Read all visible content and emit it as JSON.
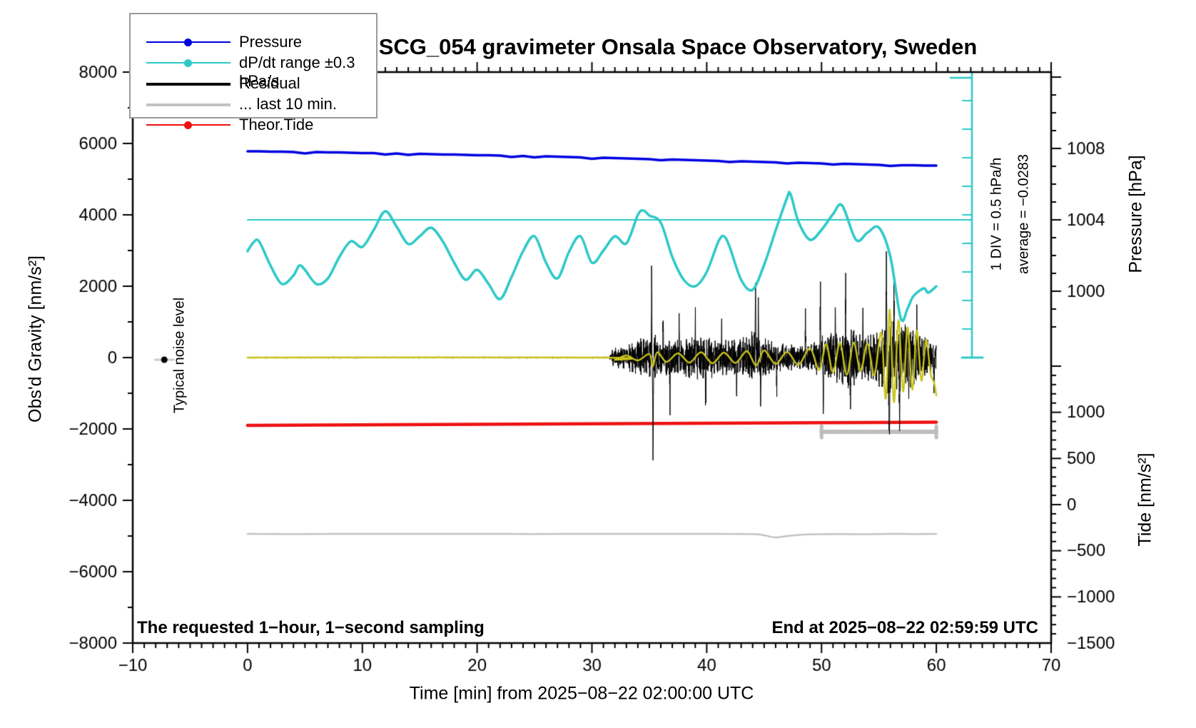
{
  "chart_data": {
    "type": "line",
    "title": "SCG_054 gravimeter Onsala Space Observatory, Sweden",
    "xlabel": "Time [min] from 2025−08−22 02:00:00 UTC",
    "x_axis": {
      "range": [
        -10,
        70
      ],
      "major_ticks": [
        -10,
        0,
        10,
        20,
        30,
        40,
        50,
        60,
        70
      ],
      "minor_step": 1
    },
    "gravity_axis": {
      "label": "Obs'd Gravity [nm/s²]",
      "range": [
        -8000,
        8000
      ],
      "major_ticks": [
        8000,
        6000,
        4000,
        2000,
        0,
        -2000,
        -4000,
        -6000,
        -8000
      ],
      "minor_step": 1000
    },
    "pressure_axis": {
      "label": "Pressure [hPa]",
      "major_ticks": [
        1008,
        1004,
        1000
      ],
      "minor_step": 1
    },
    "tide_axis": {
      "label": "Tide [nm/s²]",
      "major_ticks": [
        1000,
        500,
        0,
        -500,
        -1000,
        -1500
      ],
      "minor_step": 100
    },
    "legend": {
      "items": [
        {
          "label": "Pressure",
          "color": "#0000e0",
          "marker": "dot",
          "lw": 2.5
        },
        {
          "label": "dP/dt range ±0.3 hPa/s",
          "color": "#2cc8c8",
          "marker": "dot",
          "lw": 2.5
        },
        {
          "label": "Residual",
          "color": "#000000",
          "marker": "none",
          "lw": 4
        },
        {
          "label": "... last 10 min.",
          "color": "#c3c3c3",
          "marker": "none",
          "lw": 4
        },
        {
          "label": "Theor.Tide",
          "color": "#ee1111",
          "marker": "dot",
          "lw": 2.5
        }
      ]
    },
    "annotations": {
      "noise_level": "Typical noise level",
      "div_scale": "1 DIV = 0.5 hPa/h",
      "average": "average = −0.0283",
      "sampling": "The requested 1−hour, 1−second sampling",
      "end_time": "End at 2025−08−22 02:59:59 UTC"
    },
    "series": {
      "pressure_hpa_per_min": [
        1007.84,
        1007.84,
        1007.82,
        1007.82,
        1007.8,
        1007.72,
        1007.8,
        1007.78,
        1007.78,
        1007.76,
        1007.74,
        1007.74,
        1007.66,
        1007.72,
        1007.64,
        1007.7,
        1007.68,
        1007.66,
        1007.66,
        1007.64,
        1007.62,
        1007.62,
        1007.6,
        1007.52,
        1007.58,
        1007.5,
        1007.56,
        1007.54,
        1007.52,
        1007.5,
        1007.42,
        1007.48,
        1007.46,
        1007.44,
        1007.42,
        1007.4,
        1007.34,
        1007.38,
        1007.36,
        1007.34,
        1007.32,
        1007.3,
        1007.24,
        1007.28,
        1007.26,
        1007.24,
        1007.22,
        1007.16,
        1007.2,
        1007.18,
        1007.16,
        1007.1,
        1007.14,
        1007.12,
        1007.1,
        1007.08,
        1007.02,
        1007.06,
        1007.06,
        1007.04,
        1007.04
      ],
      "dpdt_gravity": [
        [
          0,
          2980
        ],
        [
          0.5,
          3220
        ],
        [
          1,
          3260
        ],
        [
          2,
          2580
        ],
        [
          3,
          2060
        ],
        [
          4,
          2300
        ],
        [
          4.5,
          2580
        ],
        [
          5,
          2460
        ],
        [
          6,
          2060
        ],
        [
          7,
          2220
        ],
        [
          8,
          2820
        ],
        [
          9,
          3260
        ],
        [
          10,
          3100
        ],
        [
          11,
          3580
        ],
        [
          12,
          4100
        ],
        [
          13,
          3660
        ],
        [
          14,
          3180
        ],
        [
          15,
          3400
        ],
        [
          16,
          3640
        ],
        [
          17,
          3260
        ],
        [
          18,
          2660
        ],
        [
          19,
          2180
        ],
        [
          20,
          2460
        ],
        [
          21,
          2060
        ],
        [
          22,
          1640
        ],
        [
          23,
          2260
        ],
        [
          24,
          2980
        ],
        [
          25,
          3400
        ],
        [
          26,
          2660
        ],
        [
          27,
          2220
        ],
        [
          28,
          2960
        ],
        [
          29,
          3400
        ],
        [
          30,
          2660
        ],
        [
          31,
          3000
        ],
        [
          32,
          3400
        ],
        [
          33,
          3200
        ],
        [
          34,
          4000
        ],
        [
          34.5,
          4120
        ],
        [
          35,
          3980
        ],
        [
          36,
          3780
        ],
        [
          37,
          2820
        ],
        [
          38,
          2180
        ],
        [
          39,
          2000
        ],
        [
          40,
          2400
        ],
        [
          41,
          3240
        ],
        [
          41.5,
          3400
        ],
        [
          42,
          3100
        ],
        [
          43,
          2180
        ],
        [
          44,
          1900
        ],
        [
          45,
          2600
        ],
        [
          46,
          3560
        ],
        [
          47,
          4480
        ],
        [
          47.3,
          4580
        ],
        [
          48,
          3800
        ],
        [
          49,
          3300
        ],
        [
          50,
          3580
        ],
        [
          51,
          4020
        ],
        [
          51.8,
          4260
        ],
        [
          53,
          3300
        ],
        [
          54,
          3500
        ],
        [
          55,
          3640
        ],
        [
          56,
          2820
        ],
        [
          56.9,
          1100
        ],
        [
          57.5,
          1380
        ],
        [
          58,
          1720
        ],
        [
          58.9,
          1940
        ],
        [
          59.3,
          1820
        ],
        [
          60,
          2000
        ]
      ],
      "dpdt_zero_line_gravity": 3860,
      "residual_envelope": [
        [
          0,
          25
        ],
        [
          31.5,
          25
        ],
        [
          31.8,
          260
        ],
        [
          33,
          380
        ],
        [
          34,
          520
        ],
        [
          35,
          700
        ],
        [
          35.6,
          650
        ],
        [
          36.5,
          520
        ],
        [
          38,
          560
        ],
        [
          39.5,
          700
        ],
        [
          41,
          520
        ],
        [
          43,
          560
        ],
        [
          44,
          760
        ],
        [
          45,
          600
        ],
        [
          46,
          420
        ],
        [
          47.5,
          380
        ],
        [
          49,
          360
        ],
        [
          49.8,
          600
        ],
        [
          50.5,
          700
        ],
        [
          51.5,
          800
        ],
        [
          52.5,
          880
        ],
        [
          53.5,
          700
        ],
        [
          54.5,
          680
        ],
        [
          55.2,
          900
        ],
        [
          55.9,
          1150
        ],
        [
          56.6,
          1000
        ],
        [
          57.4,
          950
        ],
        [
          58.2,
          800
        ],
        [
          59,
          600
        ],
        [
          59.6,
          450
        ],
        [
          60,
          400
        ]
      ],
      "residual_spikes": [
        [
          35.2,
          2420,
          0.05
        ],
        [
          35.32,
          -3080,
          0.06
        ],
        [
          36.2,
          1250,
          0.04
        ],
        [
          36.8,
          -1350,
          0.04
        ],
        [
          37.6,
          1150,
          0.04
        ],
        [
          39.0,
          1300,
          0.04
        ],
        [
          39.9,
          -1250,
          0.05
        ],
        [
          41.3,
          1050,
          0.04
        ],
        [
          42.6,
          -1000,
          0.04
        ],
        [
          44.25,
          1900,
          0.05
        ],
        [
          44.5,
          1750,
          0.04
        ],
        [
          44.7,
          -1300,
          0.05
        ],
        [
          46.1,
          -900,
          0.04
        ],
        [
          48.6,
          1050,
          0.04
        ],
        [
          49.9,
          1950,
          0.05
        ],
        [
          50.15,
          -1600,
          0.05
        ],
        [
          51.2,
          1500,
          0.04
        ],
        [
          52.1,
          1900,
          0.05
        ],
        [
          52.5,
          -1500,
          0.05
        ],
        [
          53.6,
          1600,
          0.04
        ],
        [
          55.65,
          2820,
          0.06
        ],
        [
          55.9,
          -2400,
          0.07
        ],
        [
          56.3,
          2200,
          0.05
        ],
        [
          56.8,
          -1700,
          0.05
        ],
        [
          57.6,
          -1500,
          0.05
        ],
        [
          58.3,
          1300,
          0.05
        ],
        [
          59.8,
          -900,
          0.05
        ]
      ],
      "residual_smooth_gravity": [
        [
          0,
          0
        ],
        [
          31,
          0
        ],
        [
          32,
          -60
        ],
        [
          33,
          60
        ],
        [
          34,
          -80
        ],
        [
          35,
          100
        ],
        [
          35.3,
          -250
        ],
        [
          35.7,
          150
        ],
        [
          36.5,
          -120
        ],
        [
          37.5,
          120
        ],
        [
          38.5,
          -140
        ],
        [
          39.5,
          150
        ],
        [
          40.5,
          -160
        ],
        [
          41.5,
          140
        ],
        [
          42.5,
          -150
        ],
        [
          43.5,
          180
        ],
        [
          44.3,
          -220
        ],
        [
          45,
          200
        ],
        [
          46,
          -180
        ],
        [
          47,
          160
        ],
        [
          48,
          -200
        ],
        [
          49,
          260
        ],
        [
          49.8,
          -350
        ],
        [
          50.4,
          380
        ],
        [
          51,
          -420
        ],
        [
          51.6,
          420
        ],
        [
          52.2,
          -480
        ],
        [
          52.8,
          420
        ],
        [
          53.4,
          -380
        ],
        [
          54,
          400
        ],
        [
          54.6,
          -500
        ],
        [
          55.2,
          700
        ],
        [
          55.6,
          -1150
        ],
        [
          55.95,
          1350
        ],
        [
          56.3,
          -1250
        ],
        [
          56.7,
          1050
        ],
        [
          57.1,
          -950
        ],
        [
          57.5,
          850
        ],
        [
          57.9,
          -900
        ],
        [
          58.3,
          750
        ],
        [
          58.7,
          -650
        ],
        [
          59.1,
          500
        ],
        [
          59.5,
          -450
        ],
        [
          59.8,
          -700
        ],
        [
          60,
          -1060
        ]
      ],
      "gray_line_gravity": [
        [
          0,
          -4940
        ],
        [
          5,
          -4945
        ],
        [
          10,
          -4938
        ],
        [
          15,
          -4942
        ],
        [
          20,
          -4940
        ],
        [
          25,
          -4944
        ],
        [
          30,
          -4938
        ],
        [
          35,
          -4942
        ],
        [
          40,
          -4940
        ],
        [
          44,
          -4946
        ],
        [
          45,
          -4980
        ],
        [
          46,
          -5040
        ],
        [
          47,
          -5000
        ],
        [
          48.5,
          -4960
        ],
        [
          50,
          -4950
        ],
        [
          52,
          -4945
        ],
        [
          54,
          -4950
        ],
        [
          56,
          -4940
        ],
        [
          58,
          -4945
        ],
        [
          60,
          -4942
        ]
      ],
      "tide_theor": [
        [
          0,
          858
        ],
        [
          10,
          864
        ],
        [
          20,
          870
        ],
        [
          30,
          876
        ],
        [
          40,
          882
        ],
        [
          50,
          888
        ],
        [
          60,
          893
        ]
      ],
      "last10_bar": {
        "t_start": 50,
        "t_end": 60,
        "gravity": -2080
      },
      "noise_marker": {
        "t": -7.25,
        "gravity": -60
      }
    },
    "colors": {
      "pressure": "#0000e0",
      "dpdt": "#2cc8c8",
      "residual": "#000000",
      "smooth": "#c9c419",
      "gray": "#c3c3c3",
      "tide": "#ee1111",
      "bar": "#bdbdbd"
    }
  }
}
